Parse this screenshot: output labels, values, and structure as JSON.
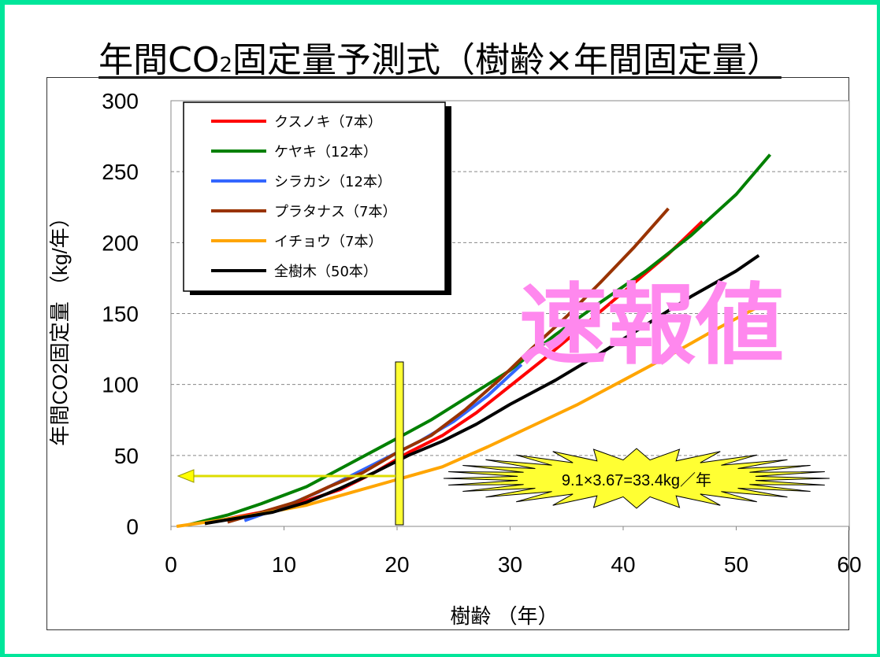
{
  "title_prefix": "年間CO",
  "title_sub": "2",
  "title_suffix": "固定量予測式（樹齢×年間固定量）",
  "watermark": "速報値",
  "annotation": "9.1×3.67=33.4kg／年",
  "colors": {
    "frame": "#00e69a",
    "watermark": "#ff88ee",
    "highlight": "#ffff33",
    "arrow": "#dddd00"
  },
  "chart_data": {
    "type": "line",
    "xlabel": "樹齢 （年）",
    "ylabel": "年間CO2固定量 （kg/年）",
    "xlim": [
      0,
      60
    ],
    "ylim": [
      0,
      300
    ],
    "x_ticks": [
      "0",
      "10",
      "20",
      "30",
      "40",
      "50",
      "60"
    ],
    "y_ticks": [
      "0",
      "50",
      "100",
      "150",
      "200",
      "250",
      "300"
    ],
    "grid": "horizontal dashed",
    "legend_position": "top-left",
    "reference": {
      "x": 20,
      "y": 33.4
    },
    "series": [
      {
        "name": "クスノキ（7本）",
        "color": "#ff0000",
        "points": [
          [
            3,
            2
          ],
          [
            6,
            7
          ],
          [
            10,
            13
          ],
          [
            15,
            26
          ],
          [
            18,
            38
          ],
          [
            21,
            52
          ],
          [
            24,
            64
          ],
          [
            27,
            80
          ],
          [
            30,
            99
          ],
          [
            33,
            118
          ],
          [
            36,
            138
          ],
          [
            40,
            165
          ],
          [
            44,
            192
          ],
          [
            47,
            215
          ]
        ]
      },
      {
        "name": "ケヤキ（12本）",
        "color": "#008000",
        "points": [
          [
            1.5,
            1
          ],
          [
            5,
            8
          ],
          [
            8,
            16
          ],
          [
            12,
            28
          ],
          [
            16,
            45
          ],
          [
            20,
            62
          ],
          [
            23,
            75
          ],
          [
            26,
            90
          ],
          [
            30,
            110
          ],
          [
            34,
            135
          ],
          [
            38,
            158
          ],
          [
            42,
            180
          ],
          [
            46,
            205
          ],
          [
            50,
            234
          ],
          [
            53,
            262
          ]
        ]
      },
      {
        "name": "シラカシ（12本）",
        "color": "#3366ff",
        "points": [
          [
            6.5,
            4
          ],
          [
            10,
            14
          ],
          [
            13,
            24
          ],
          [
            16,
            36
          ],
          [
            19,
            48
          ],
          [
            22,
            60
          ],
          [
            25,
            74
          ],
          [
            28,
            92
          ],
          [
            31,
            114
          ]
        ]
      },
      {
        "name": "プラタナス（7本）",
        "color": "#993300",
        "points": [
          [
            5,
            3
          ],
          [
            8,
            10
          ],
          [
            11,
            17
          ],
          [
            14,
            28
          ],
          [
            17,
            38
          ],
          [
            20,
            52
          ],
          [
            23,
            64
          ],
          [
            26,
            82
          ],
          [
            29,
            103
          ],
          [
            32,
            126
          ],
          [
            35,
            148
          ],
          [
            38,
            172
          ],
          [
            41,
            197
          ],
          [
            44,
            224
          ]
        ]
      },
      {
        "name": "イチョウ（7本）",
        "color": "#ffa500",
        "points": [
          [
            0.5,
            0
          ],
          [
            4,
            4
          ],
          [
            8,
            9
          ],
          [
            12,
            15
          ],
          [
            16,
            24
          ],
          [
            20,
            33
          ],
          [
            24,
            42
          ],
          [
            28,
            56
          ],
          [
            32,
            71
          ],
          [
            36,
            86
          ],
          [
            40,
            103
          ],
          [
            44,
            120
          ],
          [
            48,
            138
          ],
          [
            52,
            155
          ]
        ]
      },
      {
        "name": "全樹木（50本）",
        "color": "#000000",
        "points": [
          [
            3,
            2
          ],
          [
            6,
            6
          ],
          [
            9,
            10
          ],
          [
            12,
            17
          ],
          [
            15,
            27
          ],
          [
            18,
            38
          ],
          [
            21,
            50
          ],
          [
            24,
            60
          ],
          [
            27,
            72
          ],
          [
            30,
            86
          ],
          [
            34,
            103
          ],
          [
            38,
            122
          ],
          [
            42,
            142
          ],
          [
            46,
            162
          ],
          [
            50,
            180
          ],
          [
            52,
            191
          ]
        ]
      }
    ]
  }
}
